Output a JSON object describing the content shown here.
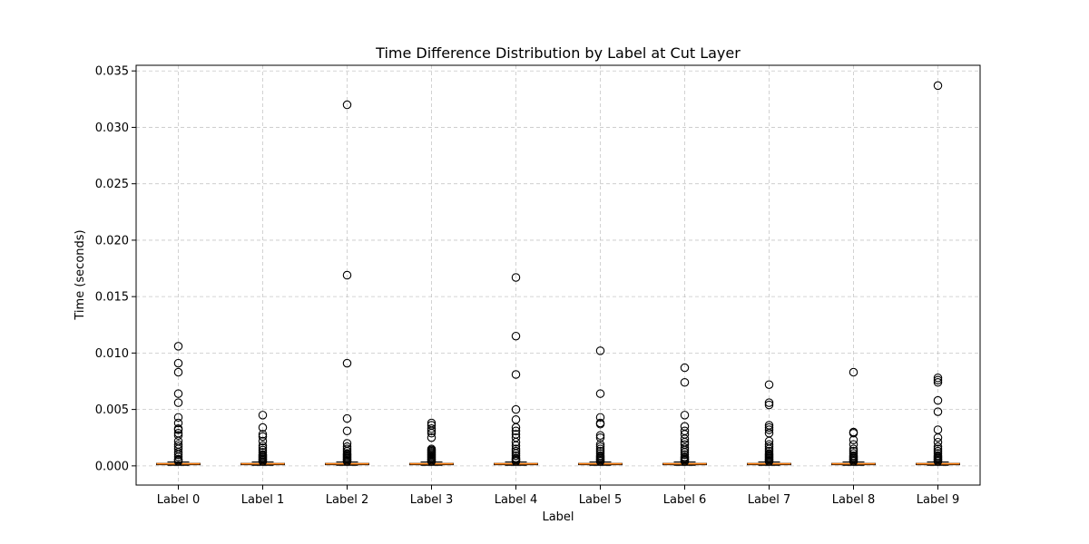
{
  "chart_data": {
    "type": "box",
    "title": "Time Difference Distribution by Label at Cut Layer",
    "xlabel": "Label",
    "ylabel": "Time (seconds)",
    "ylim": [
      -0.0017,
      0.0355
    ],
    "yticks": [
      0.0,
      0.005,
      0.01,
      0.015,
      0.02,
      0.025,
      0.03,
      0.035
    ],
    "ytick_labels": [
      "0.000",
      "0.005",
      "0.010",
      "0.015",
      "0.020",
      "0.025",
      "0.030",
      "0.035"
    ],
    "grid": true,
    "median_color": "#ff7f0e",
    "categories": [
      "Label 0",
      "Label 1",
      "Label 2",
      "Label 3",
      "Label 4",
      "Label 5",
      "Label 6",
      "Label 7",
      "Label 8",
      "Label 9"
    ],
    "boxes": [
      {
        "q1": 0.00012,
        "median": 0.00018,
        "q3": 0.00022,
        "whisker_low": 5e-05,
        "whisker_high": 0.00035,
        "outliers": [
          0.0106,
          0.0091,
          0.0083,
          0.0064,
          0.0056,
          0.0043,
          0.0038,
          0.0033,
          0.0032,
          0.0029,
          0.0027,
          0.0022,
          0.0019,
          0.0017,
          0.0015,
          0.0012,
          0.001,
          0.0008,
          0.0006,
          0.0005,
          0.0004
        ]
      },
      {
        "q1": 0.00012,
        "median": 0.00018,
        "q3": 0.00022,
        "whisker_low": 5e-05,
        "whisker_high": 0.00035,
        "outliers": [
          0.0045,
          0.0034,
          0.0028,
          0.0026,
          0.0022,
          0.0018,
          0.0016,
          0.0014,
          0.0012,
          0.001,
          0.0009,
          0.0008,
          0.0007,
          0.0006,
          0.0005,
          0.0004
        ]
      },
      {
        "q1": 0.00012,
        "median": 0.00018,
        "q3": 0.00022,
        "whisker_low": 5e-05,
        "whisker_high": 0.00035,
        "outliers": [
          0.032,
          0.0169,
          0.0091,
          0.0042,
          0.0031,
          0.002,
          0.0017,
          0.0015,
          0.0013,
          0.0011,
          0.001,
          0.0009,
          0.0008,
          0.0007,
          0.0006,
          0.0005,
          0.0004
        ]
      },
      {
        "q1": 0.00012,
        "median": 0.00018,
        "q3": 0.00022,
        "whisker_low": 5e-05,
        "whisker_high": 0.00035,
        "outliers": [
          0.0038,
          0.0036,
          0.0033,
          0.0031,
          0.0029,
          0.0025,
          0.0015,
          0.0014,
          0.0013,
          0.0012,
          0.0011,
          0.001,
          0.0009,
          0.0008,
          0.0007,
          0.0006,
          0.0005,
          0.0004
        ]
      },
      {
        "q1": 0.00012,
        "median": 0.00018,
        "q3": 0.00022,
        "whisker_low": 5e-05,
        "whisker_high": 0.00035,
        "outliers": [
          0.0167,
          0.0115,
          0.0081,
          0.005,
          0.0041,
          0.0034,
          0.0031,
          0.0028,
          0.0025,
          0.0021,
          0.0018,
          0.0015,
          0.0013,
          0.0011,
          0.0009,
          0.0007,
          0.0006,
          0.0005,
          0.0004
        ]
      },
      {
        "q1": 0.00012,
        "median": 0.00018,
        "q3": 0.00022,
        "whisker_low": 5e-05,
        "whisker_high": 0.00035,
        "outliers": [
          0.0102,
          0.0064,
          0.0043,
          0.0038,
          0.0037,
          0.0027,
          0.0025,
          0.0019,
          0.0017,
          0.0015,
          0.0013,
          0.0011,
          0.0009,
          0.0008,
          0.0007,
          0.0006,
          0.0005,
          0.0004
        ]
      },
      {
        "q1": 0.00012,
        "median": 0.00018,
        "q3": 0.00022,
        "whisker_low": 5e-05,
        "whisker_high": 0.00035,
        "outliers": [
          0.0087,
          0.0074,
          0.0045,
          0.0035,
          0.0031,
          0.0028,
          0.0024,
          0.0021,
          0.0019,
          0.0016,
          0.0014,
          0.0012,
          0.001,
          0.0008,
          0.0007,
          0.0006,
          0.0005,
          0.0004
        ]
      },
      {
        "q1": 0.00012,
        "median": 0.00018,
        "q3": 0.00022,
        "whisker_low": 5e-05,
        "whisker_high": 0.00035,
        "outliers": [
          0.0072,
          0.0056,
          0.0054,
          0.0036,
          0.0034,
          0.0032,
          0.0029,
          0.0022,
          0.0019,
          0.0017,
          0.0015,
          0.0013,
          0.0011,
          0.001,
          0.0009,
          0.0008,
          0.0007,
          0.0006,
          0.0005,
          0.0004
        ]
      },
      {
        "q1": 0.00012,
        "median": 0.00018,
        "q3": 0.00022,
        "whisker_low": 5e-05,
        "whisker_high": 0.00035,
        "outliers": [
          0.0083,
          0.003,
          0.0029,
          0.0023,
          0.0019,
          0.0015,
          0.0013,
          0.0011,
          0.0009,
          0.0008,
          0.0007,
          0.0006,
          0.0005,
          0.0004
        ]
      },
      {
        "q1": 0.00012,
        "median": 0.00018,
        "q3": 0.00022,
        "whisker_low": 5e-05,
        "whisker_high": 0.00035,
        "outliers": [
          0.0337,
          0.0078,
          0.0076,
          0.0074,
          0.0058,
          0.0048,
          0.0032,
          0.0025,
          0.0021,
          0.0017,
          0.0015,
          0.0013,
          0.0011,
          0.0009,
          0.0008,
          0.0007,
          0.0006,
          0.0005,
          0.0004
        ]
      }
    ]
  }
}
